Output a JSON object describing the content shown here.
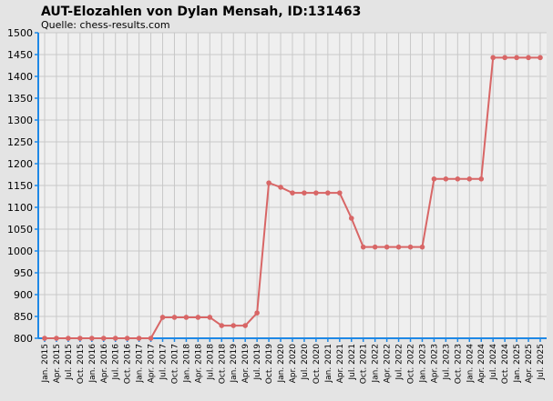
{
  "chart_data": {
    "type": "line",
    "title": "AUT-Elozahlen von Dylan Mensah, ID:131463",
    "subtitle": "Quelle: chess-results.com",
    "xlabel": "",
    "ylabel": "",
    "ylim": [
      800,
      1500
    ],
    "yticks": [
      800,
      850,
      900,
      950,
      1000,
      1050,
      1100,
      1150,
      1200,
      1250,
      1300,
      1350,
      1400,
      1450,
      1500
    ],
    "grid": true,
    "categories": [
      "Jan. 2015",
      "Apr. 2015",
      "Jul. 2015",
      "Oct. 2015",
      "Jan. 2016",
      "Apr. 2016",
      "Jul. 2016",
      "Oct. 2016",
      "Jan. 2017",
      "Apr. 2017",
      "Jul. 2017",
      "Oct. 2017",
      "Jan. 2018",
      "Apr. 2018",
      "Jul. 2018",
      "Oct. 2018",
      "Jan. 2019",
      "Apr. 2019",
      "Jul. 2019",
      "Oct. 2019",
      "Jan. 2020",
      "Apr. 2020",
      "Jul. 2020",
      "Oct. 2020",
      "Jan. 2021",
      "Apr. 2021",
      "Jul. 2021",
      "Oct. 2021",
      "Jan. 2022",
      "Apr. 2022",
      "Jul. 2022",
      "Oct. 2022",
      "Jan. 2023",
      "Apr. 2023",
      "Jul. 2023",
      "Oct. 2023",
      "Jan. 2024",
      "Apr. 2024",
      "Jul. 2024",
      "Oct. 2024",
      "Jan. 2025",
      "Apr. 2025",
      "Jul. 2025"
    ],
    "series": [
      {
        "values": [
          800,
          800,
          800,
          800,
          800,
          800,
          800,
          800,
          800,
          800,
          848,
          848,
          848,
          848,
          848,
          829,
          829,
          829,
          858,
          1156,
          1146,
          1133,
          1133,
          1133,
          1133,
          1133,
          1075,
          1009,
          1009,
          1009,
          1009,
          1009,
          1009,
          1165,
          1165,
          1165,
          1165,
          1165,
          1443,
          1443,
          1443,
          1443,
          1443
        ]
      }
    ],
    "colors": {
      "line": "#d86666",
      "axis": "#1e88e5",
      "grid": "#c8c8c8",
      "plot_bg": "#efefef",
      "page_bg": "#e4e4e4"
    }
  }
}
